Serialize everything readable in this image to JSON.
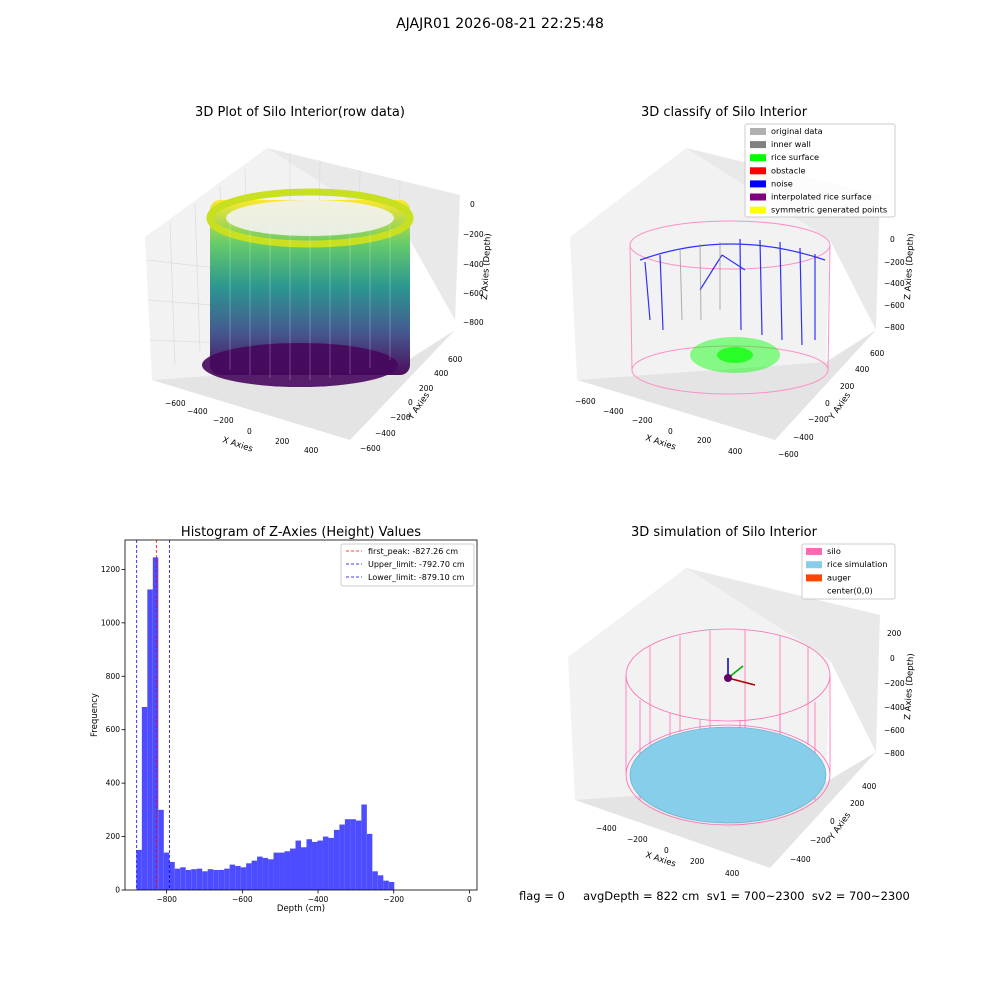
{
  "figure": {
    "suptitle": "AJAJR01 2026-08-21 22:25:48",
    "status_text": "flag = 0     avgDepth = 822 cm  sv1 = 700~2300  sv2 = 700~2300"
  },
  "colors": {
    "original_data": "#b0b0b0",
    "inner_wall": "#808080",
    "rice_surface": "#00ff00",
    "obstacle": "#ff0000",
    "noise": "#0000ff",
    "interpolated_rice_surface": "#800080",
    "symmetric_generated_points": "#ffff00",
    "silo": "#ff69b4",
    "rice_simulation": "#87ceeb",
    "auger": "#ff4500",
    "hist_bar": "#4d4dff",
    "first_peak": "#ff0000",
    "limits": "#0000ff"
  },
  "chart_data": [
    {
      "type": "scatter",
      "subtype": "3d",
      "title": "3D Plot of Silo Interior(row data)",
      "xlabel": "X Axies",
      "ylabel": "Y Axies",
      "zlabel": "Z Axies (Depth)",
      "x_ticks": [
        "−600",
        "−400",
        "−200",
        "0",
        "200",
        "400"
      ],
      "y_ticks": [
        "−600",
        "−400",
        "−200",
        "0",
        "200",
        "400",
        "600"
      ],
      "z_ticks": [
        "0",
        "−200",
        "−400",
        "−600",
        "−800"
      ],
      "colormap": "viridis"
    },
    {
      "type": "scatter",
      "subtype": "3d",
      "title": "3D classify of Silo Interior",
      "xlabel": "X Axies",
      "ylabel": "Y Axies",
      "zlabel": "Z Axies (Depth)",
      "x_ticks": [
        "−600",
        "−400",
        "−200",
        "0",
        "200",
        "400"
      ],
      "y_ticks": [
        "−600",
        "−400",
        "−200",
        "0",
        "200",
        "400",
        "600"
      ],
      "z_ticks": [
        "0",
        "−200",
        "−400",
        "−600",
        "−800"
      ],
      "legend_position": "top-right",
      "legend": [
        {
          "label": "original data",
          "color": "#b0b0b0"
        },
        {
          "label": "inner wall",
          "color": "#808080"
        },
        {
          "label": "rice surface",
          "color": "#00ff00"
        },
        {
          "label": "obstacle",
          "color": "#ff0000"
        },
        {
          "label": "noise",
          "color": "#0000ff"
        },
        {
          "label": "interpolated rice surface",
          "color": "#800080"
        },
        {
          "label": "symmetric generated points",
          "color": "#ffff00"
        }
      ]
    },
    {
      "type": "bar",
      "subtype": "histogram",
      "title": "Histogram of Z-Axies (Height) Values",
      "xlabel": "Depth (cm)",
      "ylabel": "Frequency",
      "xlim": [
        -910,
        20
      ],
      "ylim": [
        0,
        1310
      ],
      "x_ticks": [
        {
          "v": -800,
          "t": "−800"
        },
        {
          "v": -600,
          "t": "−600"
        },
        {
          "v": -400,
          "t": "−400"
        },
        {
          "v": -200,
          "t": "−200"
        },
        {
          "v": 0,
          "t": "0"
        }
      ],
      "y_ticks": [
        {
          "v": 0,
          "t": "0"
        },
        {
          "v": 200,
          "t": "200"
        },
        {
          "v": 400,
          "t": "400"
        },
        {
          "v": 600,
          "t": "600"
        },
        {
          "v": 800,
          "t": "800"
        },
        {
          "v": 1000,
          "t": "1000"
        },
        {
          "v": 1200,
          "t": "1200"
        }
      ],
      "bin_start": -880,
      "bin_width": 14.5,
      "values": [
        150,
        685,
        1125,
        1245,
        300,
        140,
        105,
        80,
        85,
        75,
        78,
        80,
        70,
        78,
        75,
        75,
        80,
        95,
        90,
        85,
        100,
        110,
        125,
        120,
        115,
        140,
        140,
        145,
        155,
        185,
        160,
        190,
        180,
        185,
        200,
        195,
        225,
        245,
        265,
        265,
        260,
        320,
        210,
        70,
        55,
        35,
        30
      ],
      "vlines": [
        {
          "x": -827.26,
          "color": "#ff0000",
          "label": "first_peak: -827.26 cm"
        },
        {
          "x": -792.7,
          "color": "#0000ff",
          "label": "Upper_limit: -792.70 cm"
        },
        {
          "x": -879.1,
          "color": "#0000ff",
          "label": "Lower_limit: -879.10 cm"
        }
      ],
      "legend_position": "top-right"
    },
    {
      "type": "scatter",
      "subtype": "3d",
      "title": "3D simulation of Silo Interior",
      "xlabel": "X Axies",
      "ylabel": "Y Axies",
      "zlabel": "Z Axies (Depth)",
      "x_ticks": [
        "−400",
        "−200",
        "0",
        "200",
        "400"
      ],
      "y_ticks": [
        "−400",
        "−200",
        "0",
        "200",
        "400"
      ],
      "z_ticks": [
        "200",
        "0",
        "−200",
        "−400",
        "−600",
        "−800"
      ],
      "legend_position": "top-right",
      "legend": [
        {
          "label": "silo",
          "color": "#ff69b4"
        },
        {
          "label": "rice simulation",
          "color": "#87ceeb"
        },
        {
          "label": "auger",
          "color": "#ff4500"
        },
        {
          "label": "center(0,0)",
          "color": ""
        }
      ]
    }
  ]
}
